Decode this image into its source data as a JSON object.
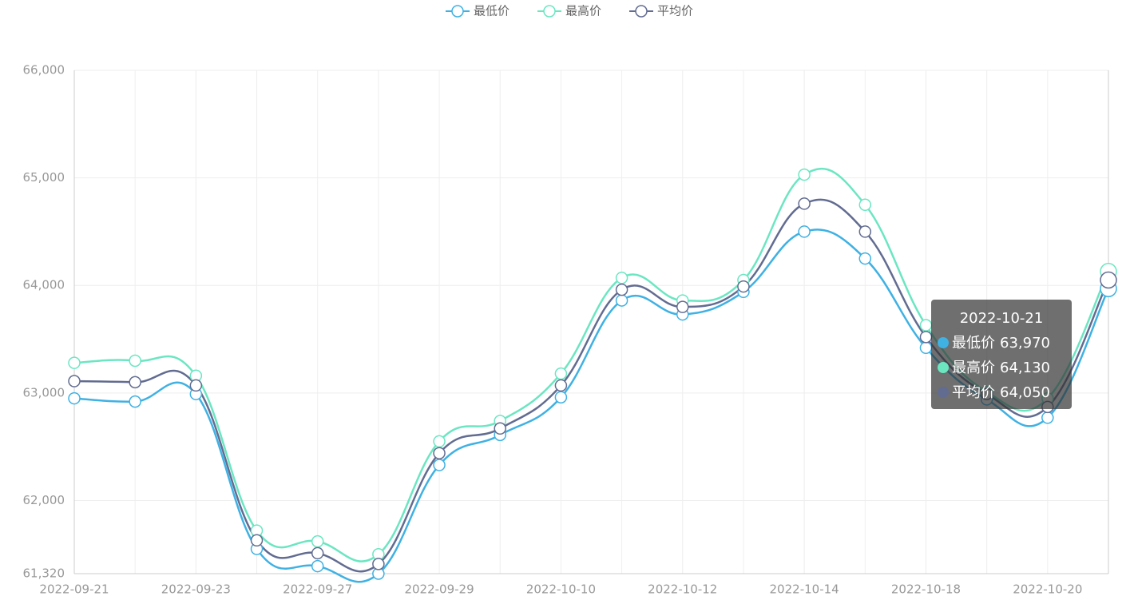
{
  "chart_data": {
    "type": "line",
    "categories": [
      "2022-09-21",
      null,
      "2022-09-23",
      null,
      "2022-09-27",
      null,
      "2022-09-29",
      null,
      "2022-10-10",
      null,
      "2022-10-12",
      null,
      "2022-10-14",
      null,
      "2022-10-18",
      null,
      "2022-10-20",
      "2022-10-21"
    ],
    "series": [
      {
        "name": "最低价",
        "color": "#3fb1e3",
        "values": [
          62950,
          62920,
          62990,
          61550,
          61390,
          61320,
          62330,
          62610,
          62960,
          63860,
          63730,
          63940,
          64500,
          64250,
          63420,
          62940,
          62770,
          63970
        ]
      },
      {
        "name": "最高价",
        "color": "#6be6c1",
        "values": [
          63280,
          63300,
          63160,
          61720,
          61620,
          61500,
          62550,
          62740,
          63180,
          64070,
          63860,
          64050,
          65030,
          64750,
          63630,
          63010,
          62950,
          64130
        ]
      },
      {
        "name": "平均价",
        "color": "#626c91",
        "values": [
          63110,
          63100,
          63070,
          61630,
          61510,
          61410,
          62440,
          62670,
          63070,
          63960,
          63800,
          63990,
          64760,
          64500,
          63520,
          62990,
          62870,
          64050
        ]
      }
    ],
    "ylim": [
      61320,
      66000
    ],
    "yticks": [
      {
        "value": 61320,
        "label": "61,320"
      },
      {
        "value": 62000,
        "label": "62,000"
      },
      {
        "value": 63000,
        "label": "63,000"
      },
      {
        "value": 64000,
        "label": "64,000"
      },
      {
        "value": 65000,
        "label": "65,000"
      },
      {
        "value": 66000,
        "label": "66,000"
      }
    ],
    "grid": true,
    "legend": "top",
    "tooltip": {
      "index": 17,
      "value_labels": [
        "63,970",
        "64,130",
        "64,050"
      ]
    }
  }
}
